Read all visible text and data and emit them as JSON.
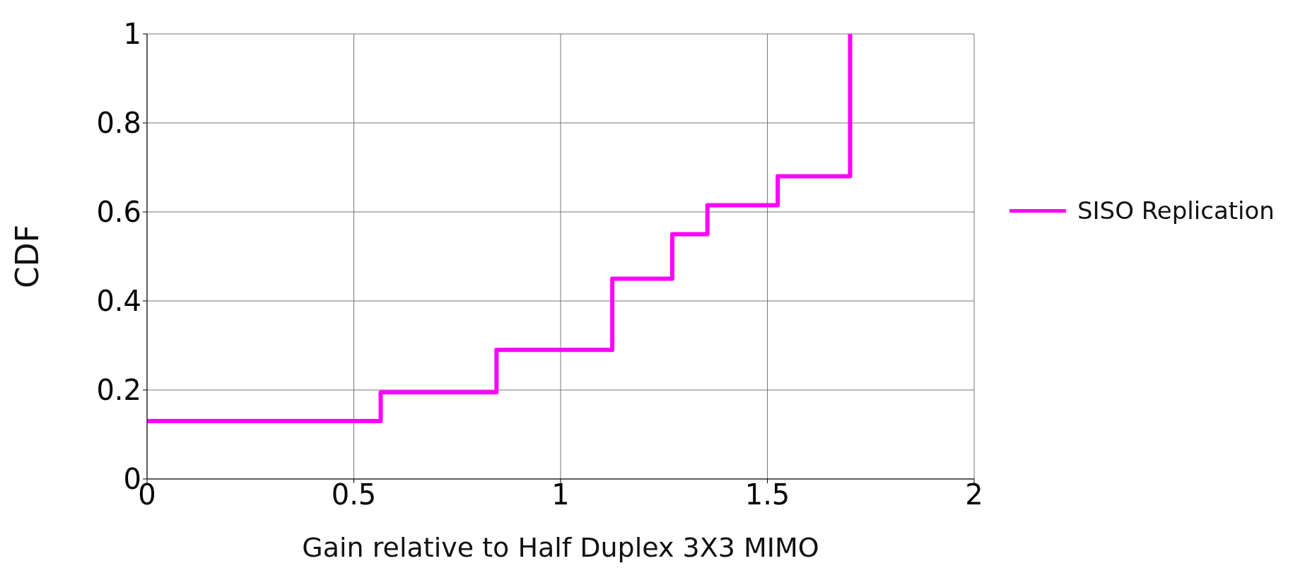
{
  "chart_data": {
    "type": "step",
    "xlabel": "Gain relative to Half Duplex 3X3 MIMO",
    "ylabel": "CDF",
    "x": [
      0,
      0.565,
      0.845,
      1.125,
      1.27,
      1.355,
      1.525,
      1.7
    ],
    "series": [
      {
        "name": "SISO Replication",
        "color": "#ff00ff",
        "values": [
          0.13,
          0.195,
          0.29,
          0.45,
          0.55,
          0.615,
          0.68,
          1
        ]
      }
    ],
    "xlim": [
      0,
      2
    ],
    "xticks": [
      0,
      0.5,
      1,
      1.5,
      2
    ],
    "ylim": [
      0,
      1
    ],
    "yticks": [
      0,
      0.2,
      0.4,
      0.6,
      0.8,
      1
    ],
    "grid": true,
    "legend": "right",
    "marker": "none",
    "line_style": "solid"
  }
}
